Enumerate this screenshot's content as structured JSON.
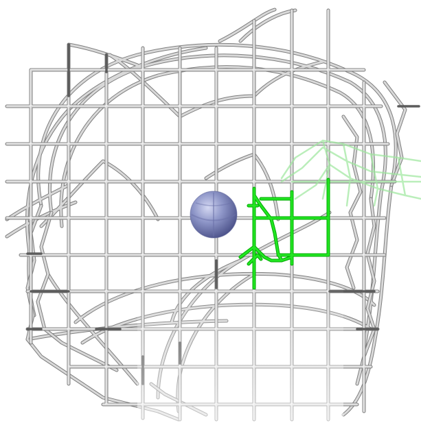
{
  "viewport": {
    "background": "#ffffff"
  },
  "colors": {
    "wire_light": "#d9d9d9",
    "wire_dark": "#7d7d7d",
    "wire_highlight": "#f7f7f7",
    "selection": "#22e622",
    "selection_ghost": "#9ee89e",
    "sphere": "#8e96c8",
    "sphere_shadow": "#4a5088"
  },
  "icons": {
    "sphere": "sphere-marker"
  }
}
